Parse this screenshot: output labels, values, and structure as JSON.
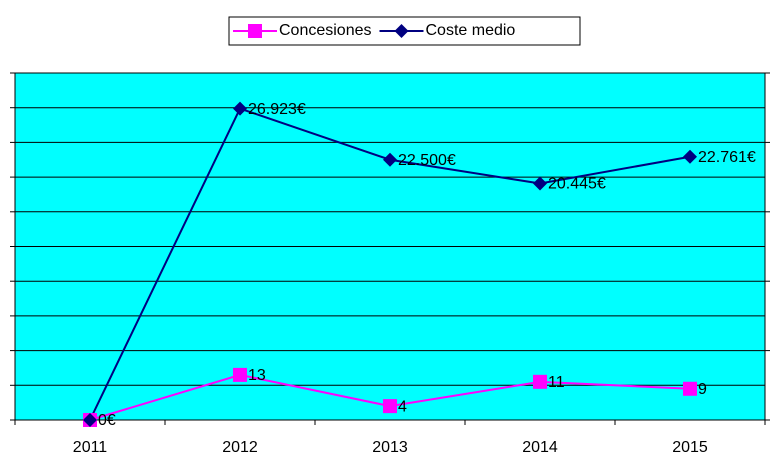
{
  "chart_data": {
    "type": "line",
    "categories": [
      "2011",
      "2012",
      "2013",
      "2014",
      "2015"
    ],
    "series": [
      {
        "name": "Concesiones",
        "color": "#ff00ff",
        "marker": "square",
        "axis": "y2",
        "values": [
          0,
          13,
          4,
          11,
          9
        ],
        "value_labels": [
          null,
          "13",
          "4",
          "11",
          "9"
        ]
      },
      {
        "name": "Coste medio",
        "color": "#000080",
        "marker": "diamond",
        "values": [
          0,
          26923,
          22500,
          20445,
          22761
        ],
        "value_labels": [
          "0€",
          "26.923€",
          "22.500€",
          "20.445€",
          "22.761€"
        ]
      }
    ],
    "ylim": [
      0,
      30000
    ],
    "yticks": [
      0,
      3000,
      6000,
      9000,
      12000,
      15000,
      18000,
      21000,
      24000,
      27000,
      30000
    ],
    "y2lim": [
      0,
      100
    ],
    "y2ticks": [
      0,
      20,
      40,
      60,
      80,
      100
    ],
    "grid": true,
    "legend": "top",
    "plot_background": "#00ffff"
  }
}
